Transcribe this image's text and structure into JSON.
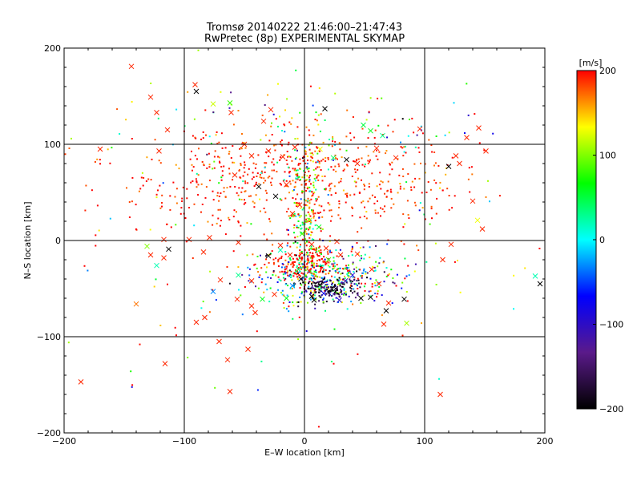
{
  "chart_data": {
    "type": "scatter",
    "title": "Tromsø 20140222 21:46:00–21:47:43",
    "subtitle": "RwPretec (8p) EXPERIMENTAL SKYMAP",
    "xlabel": "E–W location [km]",
    "ylabel": "N–S location [km]",
    "xlim": [
      -200,
      200
    ],
    "ylim": [
      -200,
      200
    ],
    "x_ticks": [
      -200,
      -100,
      0,
      100,
      200
    ],
    "y_ticks": [
      -200,
      -100,
      0,
      100,
      200
    ],
    "grid": true,
    "colorbar": {
      "label": "[m/s]",
      "range": [
        -200,
        200
      ],
      "ticks": [
        200,
        100,
        0,
        -100,
        -200
      ],
      "colormap": [
        "#000000",
        "#5a1a8a",
        "#0000ff",
        "#00ffff",
        "#00ff00",
        "#ffff00",
        "#ff0000"
      ]
    },
    "point_clusters": [
      {
        "cx": -10,
        "cy": 62,
        "sx": 70,
        "sy": 28,
        "n": 600,
        "vmean": 190,
        "vsd": 18
      },
      {
        "cx": 2,
        "cy": 35,
        "sx": 8,
        "sy": 50,
        "n": 260,
        "vmean": 120,
        "vsd": 90
      },
      {
        "cx": 0,
        "cy": -22,
        "sx": 16,
        "sy": 10,
        "n": 160,
        "vmean": 195,
        "vsd": 10
      },
      {
        "cx": 15,
        "cy": -38,
        "sx": 30,
        "sy": 14,
        "n": 420,
        "vmean": 20,
        "vsd": 120
      },
      {
        "cx": 20,
        "cy": -50,
        "sx": 12,
        "sy": 6,
        "n": 120,
        "vmean": -175,
        "vsd": 30
      },
      {
        "cx": 0,
        "cy": 0,
        "sx": 110,
        "sy": 95,
        "n": 150,
        "vmean": 130,
        "vsd": 120
      },
      {
        "cx": 30,
        "cy": 110,
        "sx": 90,
        "sy": 30,
        "n": 80,
        "vmean": 80,
        "vsd": 110
      }
    ],
    "marker_points": [
      [
        -144,
        181,
        190
      ],
      [
        -91,
        162,
        190
      ],
      [
        -128,
        149,
        190
      ],
      [
        -90,
        155,
        -200
      ],
      [
        -123,
        133,
        190
      ],
      [
        -62,
        143,
        80
      ],
      [
        -76,
        142,
        120
      ],
      [
        -61,
        133,
        190
      ],
      [
        -28,
        136,
        190
      ],
      [
        -34,
        124,
        190
      ],
      [
        17,
        137,
        -200
      ],
      [
        -114,
        115,
        190
      ],
      [
        -170,
        95,
        190
      ],
      [
        -121,
        93,
        190
      ],
      [
        55,
        114,
        60
      ],
      [
        65,
        109,
        30
      ],
      [
        49,
        120,
        50
      ],
      [
        145,
        117,
        190
      ],
      [
        135,
        107,
        190
      ],
      [
        96,
        116,
        190
      ],
      [
        129,
        80,
        190
      ],
      [
        126,
        88,
        190
      ],
      [
        151,
        93,
        190
      ],
      [
        120,
        77,
        -200
      ],
      [
        140,
        41,
        190
      ],
      [
        144,
        21,
        130
      ],
      [
        148,
        12,
        190
      ],
      [
        122,
        -4,
        190
      ],
      [
        115,
        -20,
        190
      ],
      [
        -117,
        1,
        190
      ],
      [
        -113,
        -9,
        -200
      ],
      [
        -117,
        -18,
        190
      ],
      [
        -128,
        -15,
        190
      ],
      [
        -131,
        -6,
        100
      ],
      [
        -140,
        -66,
        170
      ],
      [
        -123,
        -26,
        20
      ],
      [
        -90,
        -85,
        190
      ],
      [
        -83,
        -80,
        190
      ],
      [
        -76,
        -53,
        -30
      ],
      [
        -56,
        -61,
        190
      ],
      [
        -44,
        -68,
        190
      ],
      [
        -41,
        -75,
        190
      ],
      [
        -35,
        -61,
        60
      ],
      [
        -71,
        -105,
        190
      ],
      [
        -47,
        -113,
        190
      ],
      [
        -64,
        -124,
        190
      ],
      [
        -116,
        -128,
        190
      ],
      [
        -186,
        -147,
        190
      ],
      [
        -62,
        -157,
        190
      ],
      [
        113,
        -160,
        190
      ],
      [
        85,
        -86,
        110
      ],
      [
        70,
        -65,
        190
      ],
      [
        68,
        -73,
        -200
      ],
      [
        66,
        -87,
        190
      ],
      [
        62,
        -45,
        190
      ],
      [
        83,
        -61,
        -200
      ],
      [
        196,
        -45,
        -200
      ],
      [
        192,
        -37,
        20
      ],
      [
        -84,
        -12,
        190
      ],
      [
        -96,
        1,
        190
      ],
      [
        -79,
        3,
        190
      ],
      [
        -55,
        -2,
        190
      ],
      [
        -30,
        -16,
        -200
      ],
      [
        -20,
        -10,
        20
      ],
      [
        -12,
        -15,
        190
      ],
      [
        -5,
        -30,
        40
      ],
      [
        4,
        -32,
        190
      ],
      [
        20,
        -20,
        90
      ],
      [
        30,
        -15,
        190
      ],
      [
        44,
        -14,
        190
      ],
      [
        56,
        -30,
        190
      ],
      [
        -70,
        -41,
        190
      ],
      [
        -55,
        -36,
        30
      ],
      [
        -44,
        -42,
        190
      ],
      [
        -25,
        -56,
        190
      ],
      [
        -15,
        -60,
        60
      ],
      [
        -10,
        -47,
        -30
      ],
      [
        -3,
        -40,
        -200
      ],
      [
        6,
        -58,
        -200
      ],
      [
        13,
        -46,
        -200
      ],
      [
        26,
        -50,
        -180
      ],
      [
        34,
        -42,
        -120
      ],
      [
        40,
        -36,
        -90
      ],
      [
        47,
        -60,
        -200
      ],
      [
        55,
        -59,
        -200
      ],
      [
        29,
        -62,
        -100
      ],
      [
        16,
        -55,
        -80
      ],
      [
        8,
        -62,
        -200
      ],
      [
        -50,
        100,
        190
      ],
      [
        -44,
        88,
        190
      ],
      [
        -30,
        93,
        190
      ],
      [
        -18,
        87,
        190
      ],
      [
        -8,
        97,
        190
      ],
      [
        13,
        95,
        130
      ],
      [
        24,
        86,
        40
      ],
      [
        35,
        84,
        -200
      ],
      [
        44,
        80,
        190
      ],
      [
        60,
        96,
        190
      ],
      [
        76,
        86,
        190
      ],
      [
        -58,
        68,
        190
      ],
      [
        -38,
        56,
        -200
      ],
      [
        -24,
        46,
        -200
      ],
      [
        -15,
        58,
        190
      ],
      [
        -4,
        37,
        190
      ],
      [
        -10,
        28,
        190
      ],
      [
        4,
        21,
        120
      ],
      [
        12,
        14,
        60
      ],
      [
        -2,
        7,
        80
      ],
      [
        6,
        -4,
        190
      ],
      [
        -20,
        -5,
        190
      ],
      [
        18,
        -8,
        190
      ],
      [
        27,
        -1,
        190
      ]
    ]
  }
}
